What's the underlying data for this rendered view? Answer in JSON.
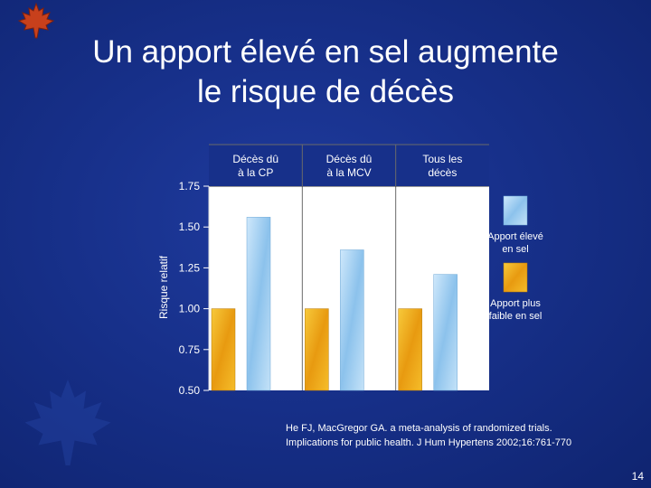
{
  "slide": {
    "title_line1": "Un apport élevé en sel augmente",
    "title_line2": "le risque de décès",
    "citation_line1": "He FJ, MacGregor GA. a meta-analysis of randomized trials.",
    "citation_line2": "Implications for public health. J Hum Hypertens 2002;16:761-770",
    "page_number": "14"
  },
  "colors": {
    "background": "#17308a",
    "high_salt": "#a8d4f4",
    "low_salt": "#f2b21e",
    "plot_bg": "#ffffff",
    "text": "#ffffff",
    "logo": "#c8401c"
  },
  "chart_data": {
    "type": "bar",
    "categories": [
      "Décès dû à la CP",
      "Décès dû à la MCV",
      "Tous les décès"
    ],
    "category_lines": [
      [
        "Décès dû",
        "à la CP"
      ],
      [
        "Décès dû",
        "à la MCV"
      ],
      [
        "Tous les",
        "décès"
      ]
    ],
    "series": [
      {
        "name": "Apport plus faible en sel",
        "name_lines": [
          "Apport plus",
          "faible en sel"
        ],
        "values": [
          1.0,
          1.0,
          1.0
        ]
      },
      {
        "name": "Apport élevé en sel",
        "name_lines": [
          "Apport élevé",
          "en sel"
        ],
        "values": [
          1.56,
          1.36,
          1.21
        ]
      }
    ],
    "ylabel": "Risque relatif",
    "xlabel": "",
    "ylim": [
      0.5,
      1.75
    ],
    "yticks": [
      0.5,
      0.75,
      1.0,
      1.25,
      1.5,
      1.75
    ],
    "ytick_labels": [
      "0.50",
      "0.75",
      "1.00",
      "1.25",
      "1.50",
      "1.75"
    ],
    "legend_position": "right"
  }
}
